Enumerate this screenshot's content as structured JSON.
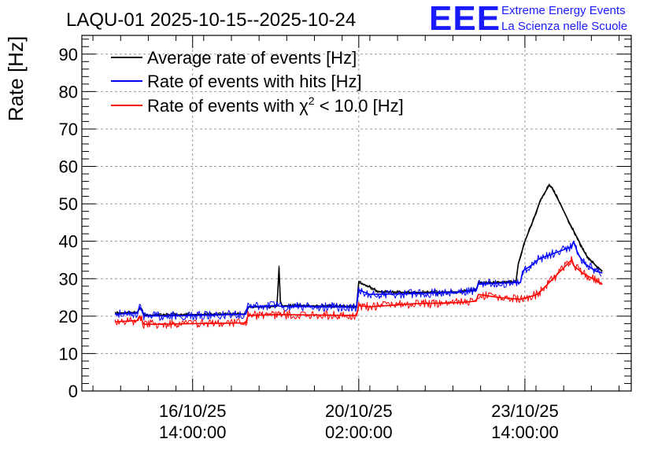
{
  "logo": {
    "mark": "EEE",
    "line1": "Extreme Energy Events",
    "line2": "La Scienza nelle Scuole",
    "color": "#1a1aff"
  },
  "chart_data": {
    "type": "line",
    "title": "LAQU-01 2025-10-15--2025-10-24",
    "ylabel": "Rate [Hz]",
    "xlabel": "",
    "xlim": [
      0.0,
      12.4
    ],
    "ylim": [
      0,
      95
    ],
    "grid": true,
    "legend_position": "top-left",
    "y_ticks": [
      0,
      10,
      20,
      30,
      40,
      50,
      60,
      70,
      80,
      90
    ],
    "x_ticks": [
      {
        "x": 2.5,
        "label_date": "16/10/25",
        "label_time": "14:00:00"
      },
      {
        "x": 6.25,
        "label_date": "20/10/25",
        "label_time": "02:00:00"
      },
      {
        "x": 10.0,
        "label_date": "23/10/25",
        "label_time": "14:00:00"
      }
    ],
    "legend": [
      {
        "name": "Average rate of events [Hz]",
        "color": "#000000"
      },
      {
        "name": "Rate of events with hits [Hz]",
        "color": "#0000ff"
      },
      {
        "name_prefix": "Rate of events with ",
        "chi": "χ",
        "sup": "2",
        "name_suffix": " < 10.0 [Hz]",
        "color": "#ff0000"
      }
    ],
    "series": [
      {
        "name": "Average rate of events [Hz]",
        "color": "#000000",
        "points": [
          [
            0.75,
            20.8
          ],
          [
            1.25,
            21.0
          ],
          [
            1.3,
            22.0
          ],
          [
            1.35,
            21.6
          ],
          [
            1.4,
            20.2
          ],
          [
            2.5,
            20.4
          ],
          [
            3.7,
            20.6
          ],
          [
            3.75,
            22.4
          ],
          [
            4.4,
            22.6
          ],
          [
            4.42,
            26.0
          ],
          [
            4.45,
            33.0
          ],
          [
            4.48,
            24.0
          ],
          [
            4.52,
            22.8
          ],
          [
            6.2,
            22.6
          ],
          [
            6.25,
            29.0
          ],
          [
            6.5,
            27.8
          ],
          [
            6.7,
            26.5
          ],
          [
            7.5,
            26.3
          ],
          [
            8.5,
            26.5
          ],
          [
            8.9,
            27.0
          ],
          [
            8.95,
            28.8
          ],
          [
            9.4,
            29.0
          ],
          [
            9.8,
            29.2
          ],
          [
            9.85,
            34.0
          ],
          [
            10.0,
            40.0
          ],
          [
            10.2,
            46.0
          ],
          [
            10.35,
            51.0
          ],
          [
            10.5,
            54.0
          ],
          [
            10.55,
            55.0
          ],
          [
            10.6,
            54.5
          ],
          [
            10.8,
            50.0
          ],
          [
            11.0,
            45.0
          ],
          [
            11.2,
            40.5
          ],
          [
            11.3,
            38.0
          ],
          [
            11.4,
            36.0
          ],
          [
            11.6,
            33.5
          ],
          [
            11.75,
            32.0
          ]
        ]
      },
      {
        "name": "Rate of events with hits [Hz]",
        "color": "#0000ff",
        "points": [
          [
            0.75,
            20.5
          ],
          [
            1.25,
            20.8
          ],
          [
            1.3,
            22.5
          ],
          [
            1.35,
            21.5
          ],
          [
            1.4,
            20.0
          ],
          [
            2.5,
            20.2
          ],
          [
            3.7,
            20.5
          ],
          [
            3.75,
            22.5
          ],
          [
            4.4,
            22.8
          ],
          [
            4.5,
            22.6
          ],
          [
            6.2,
            22.4
          ],
          [
            6.25,
            27.0
          ],
          [
            6.5,
            25.8
          ],
          [
            7.5,
            26.0
          ],
          [
            8.5,
            26.4
          ],
          [
            8.9,
            26.8
          ],
          [
            8.95,
            28.6
          ],
          [
            9.4,
            28.8
          ],
          [
            9.9,
            29.0
          ],
          [
            9.95,
            32.0
          ],
          [
            10.2,
            34.0
          ],
          [
            10.3,
            35.2
          ],
          [
            11.05,
            38.5
          ],
          [
            11.1,
            40.0
          ],
          [
            11.2,
            36.5
          ],
          [
            11.35,
            34.0
          ],
          [
            11.6,
            32.0
          ],
          [
            11.75,
            31.5
          ]
        ]
      },
      {
        "name": "Rate of events with χ2 < 10.0 [Hz]",
        "color": "#ff0000",
        "points": [
          [
            0.75,
            18.5
          ],
          [
            1.25,
            18.8
          ],
          [
            1.3,
            20.0
          ],
          [
            1.35,
            19.0
          ],
          [
            1.4,
            17.8
          ],
          [
            2.5,
            18.0
          ],
          [
            3.7,
            18.2
          ],
          [
            3.75,
            20.2
          ],
          [
            4.4,
            20.4
          ],
          [
            6.2,
            20.2
          ],
          [
            6.25,
            22.8
          ],
          [
            6.5,
            22.5
          ],
          [
            7.5,
            23.3
          ],
          [
            8.5,
            23.6
          ],
          [
            8.9,
            24.0
          ],
          [
            8.95,
            25.8
          ],
          [
            9.4,
            25.0
          ],
          [
            9.9,
            24.5
          ],
          [
            10.2,
            25.5
          ],
          [
            10.3,
            26.0
          ],
          [
            11.05,
            35.0
          ],
          [
            11.1,
            33.5
          ],
          [
            11.3,
            31.5
          ],
          [
            11.6,
            29.5
          ],
          [
            11.75,
            28.5
          ]
        ]
      }
    ]
  }
}
